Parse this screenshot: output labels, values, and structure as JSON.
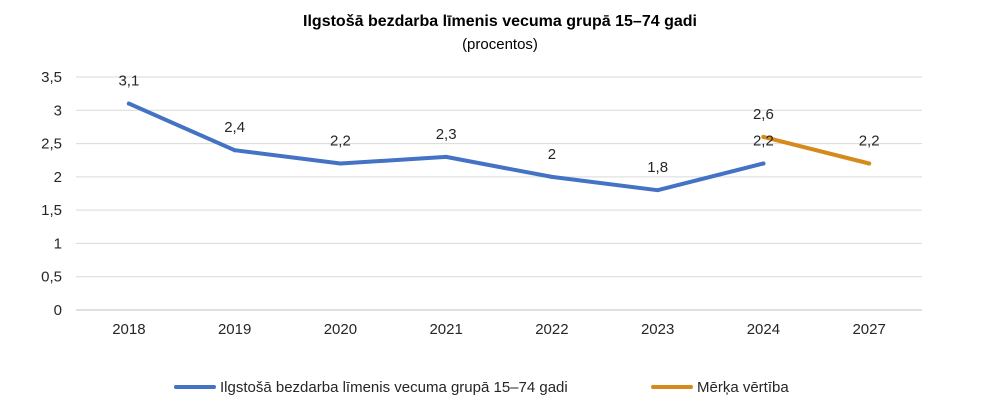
{
  "chart_data": {
    "type": "line",
    "title": "Ilgstošā bezdarba līmenis vecuma grupā 15–74 gadi",
    "subtitle": "(procentos)",
    "categories": [
      "2018",
      "2019",
      "2020",
      "2021",
      "2022",
      "2023",
      "2024",
      "2027"
    ],
    "y_ticks": [
      "0",
      "0,5",
      "1",
      "1,5",
      "2",
      "2,5",
      "3",
      "3,5"
    ],
    "ylim": [
      0,
      3.5
    ],
    "grid": "horizontal",
    "legend_position": "bottom",
    "series": [
      {
        "name": "Ilgstošā bezdarba līmenis vecuma grupā 15–74 gadi",
        "color": "#4472C4",
        "x": [
          "2018",
          "2019",
          "2020",
          "2021",
          "2022",
          "2023",
          "2024"
        ],
        "values": [
          3.1,
          2.4,
          2.2,
          2.3,
          2.0,
          1.8,
          2.2
        ],
        "labels": [
          "3,1",
          "2,4",
          "2,2",
          "2,3",
          "2",
          "1,8",
          "2,2"
        ]
      },
      {
        "name": "Mērķa vērtība",
        "color": "#D68A1C",
        "x": [
          "2024",
          "2027"
        ],
        "values": [
          2.6,
          2.2
        ],
        "labels": [
          "2,6",
          "2,2"
        ]
      }
    ]
  }
}
